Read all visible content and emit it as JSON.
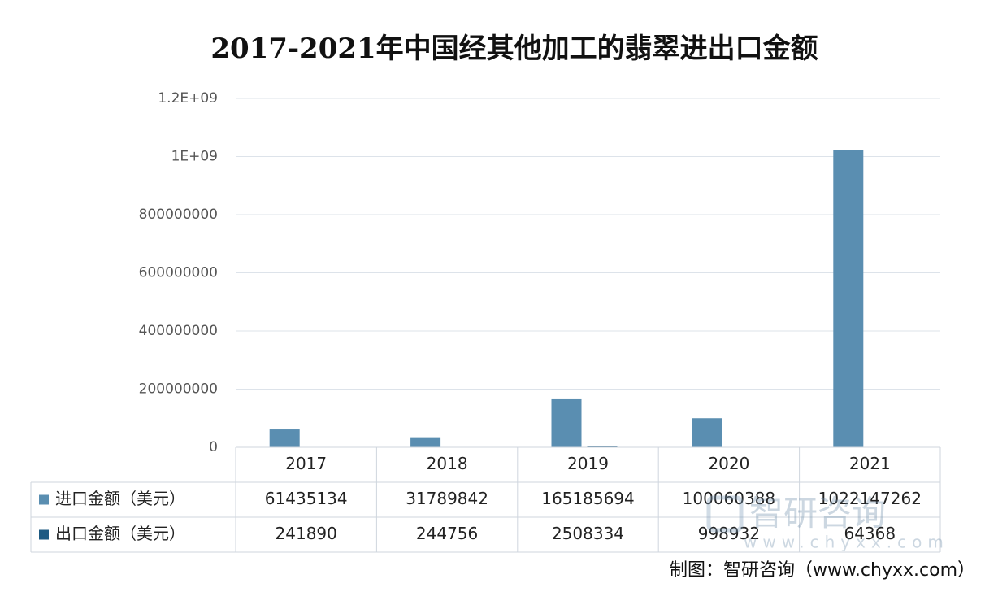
{
  "chart_data": {
    "type": "bar",
    "title": "2017-2021年中国经其他加工的翡翠进出口金额",
    "categories": [
      "2017",
      "2018",
      "2019",
      "2020",
      "2021"
    ],
    "series": [
      {
        "name": "进口金额（美元）",
        "color": "#5a8eb1",
        "values": [
          61435134,
          31789842,
          165185694,
          100060388,
          1022147262
        ]
      },
      {
        "name": "出口金额（美元）",
        "color": "#1d5a82",
        "values": [
          241890,
          244756,
          2508334,
          998932,
          64368
        ]
      }
    ],
    "ylim": [
      0,
      1200000000
    ],
    "yticks": [
      0,
      200000000,
      400000000,
      600000000,
      800000000,
      {
        "value": 1000000000,
        "label": "1E+09"
      },
      {
        "value": 1200000000,
        "label": "1.2E+09"
      }
    ],
    "grid": true,
    "data_table": true
  },
  "watermark": {
    "brand": "智研咨询",
    "url": "www.chyxx.com"
  },
  "source": "制图：智研咨询（www.chyxx.com）"
}
